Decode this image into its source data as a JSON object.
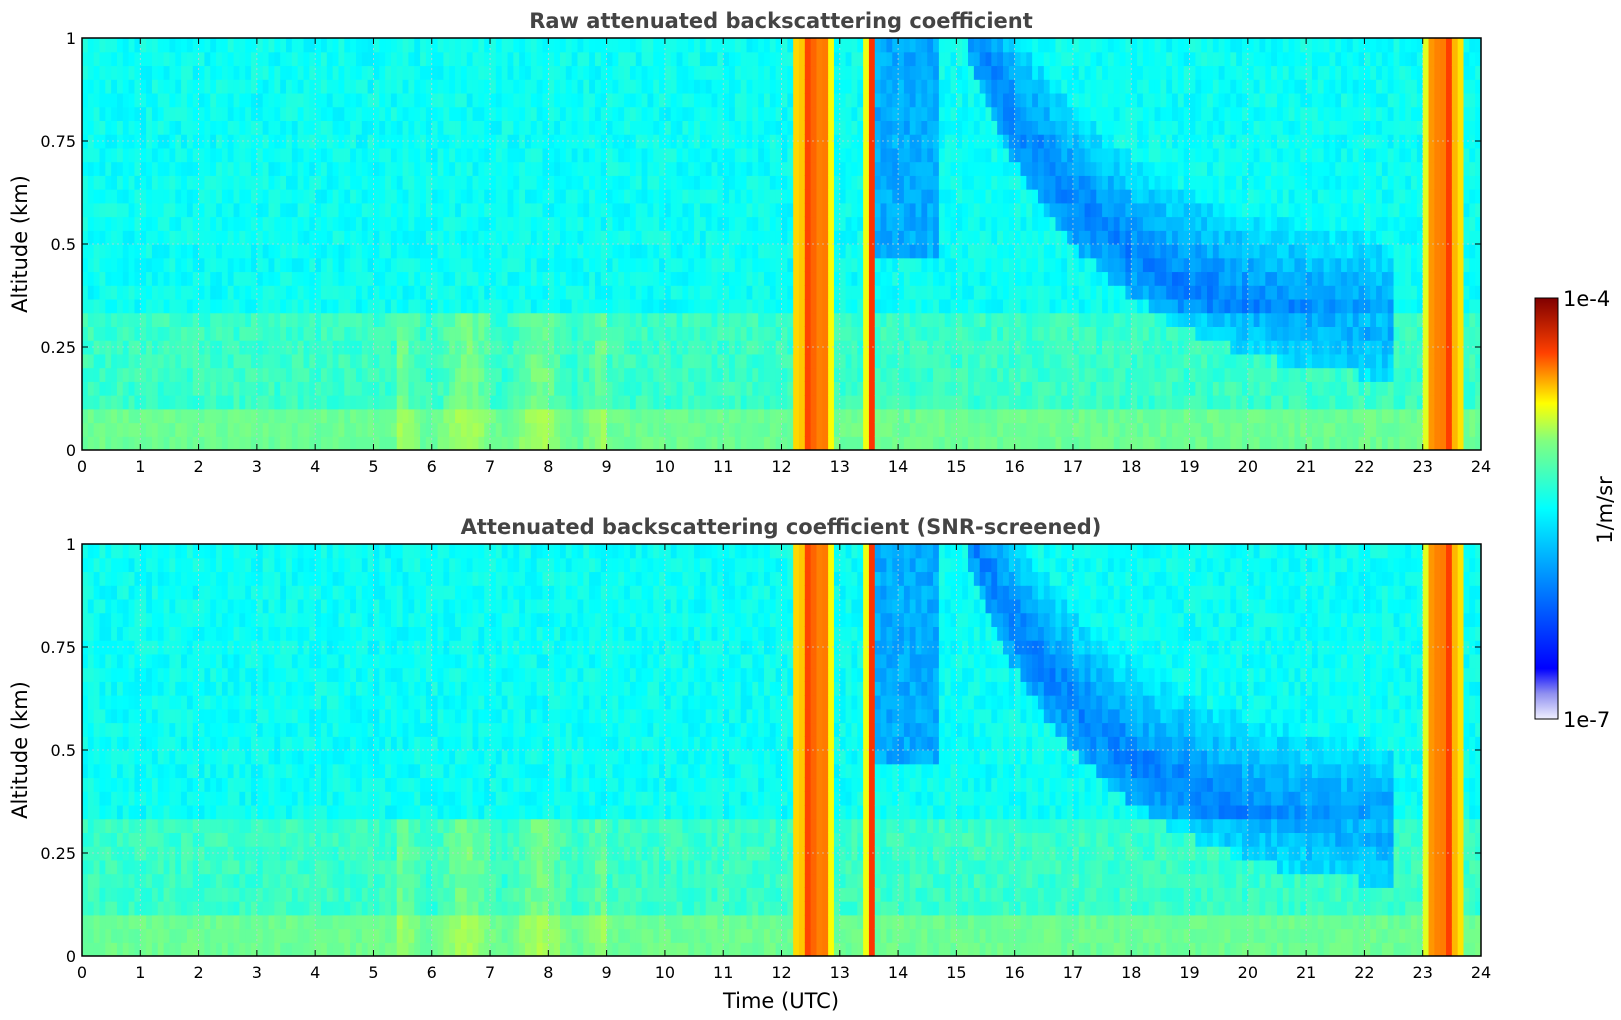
{
  "chart_data": [
    {
      "type": "heatmap",
      "title": "Raw attenuated backscattering coefficient",
      "xlabel": "",
      "ylabel": "Altitude (km)",
      "xlim": [
        0,
        24
      ],
      "ylim": [
        0,
        1
      ],
      "x_ticks": [
        "0",
        "1",
        "2",
        "3",
        "4",
        "5",
        "6",
        "7",
        "8",
        "9",
        "10",
        "11",
        "12",
        "13",
        "14",
        "15",
        "16",
        "17",
        "18",
        "19",
        "20",
        "21",
        "22",
        "23",
        "24"
      ],
      "y_ticks": [
        "0",
        "0.25",
        "0.5",
        "0.75",
        "1"
      ],
      "grid": true,
      "color_scale": "log",
      "zlim": [
        "1e-7",
        "1e-4"
      ],
      "features": {
        "background_log10": -5.9,
        "surface_layer_log10": -5.6,
        "strong_backscatter_columns_utc": [
          [
            12.2,
            12.9
          ],
          [
            13.45,
            13.62
          ],
          [
            23.05,
            23.7
          ]
        ],
        "descending_low_layer_utc": [
          15.2,
          22.5
        ],
        "descending_low_layer_alt_km": [
          1.0,
          0.2
        ]
      }
    },
    {
      "type": "heatmap",
      "title": "Attenuated backscattering coefficient (SNR-screened)",
      "xlabel": "Time (UTC)",
      "ylabel": "Altitude (km)",
      "xlim": [
        0,
        24
      ],
      "ylim": [
        0,
        1
      ],
      "x_ticks": [
        "0",
        "1",
        "2",
        "3",
        "4",
        "5",
        "6",
        "7",
        "8",
        "9",
        "10",
        "11",
        "12",
        "13",
        "14",
        "15",
        "16",
        "17",
        "18",
        "19",
        "20",
        "21",
        "22",
        "23",
        "24"
      ],
      "y_ticks": [
        "0",
        "0.25",
        "0.5",
        "0.75",
        "1"
      ],
      "grid": true,
      "color_scale": "log",
      "zlim": [
        "1e-7",
        "1e-4"
      ],
      "features": {
        "background_log10": -5.9,
        "surface_layer_log10": -5.6,
        "strong_backscatter_columns_utc": [
          [
            12.2,
            12.9
          ],
          [
            13.45,
            13.62
          ],
          [
            23.05,
            23.7
          ]
        ],
        "descending_low_layer_utc": [
          15.2,
          22.5
        ],
        "descending_low_layer_alt_km": [
          1.0,
          0.2
        ]
      }
    }
  ],
  "colorbar": {
    "label": "1/m/sr",
    "max_label": "1e-4",
    "min_label": "1e-7",
    "colormap": "jet"
  }
}
